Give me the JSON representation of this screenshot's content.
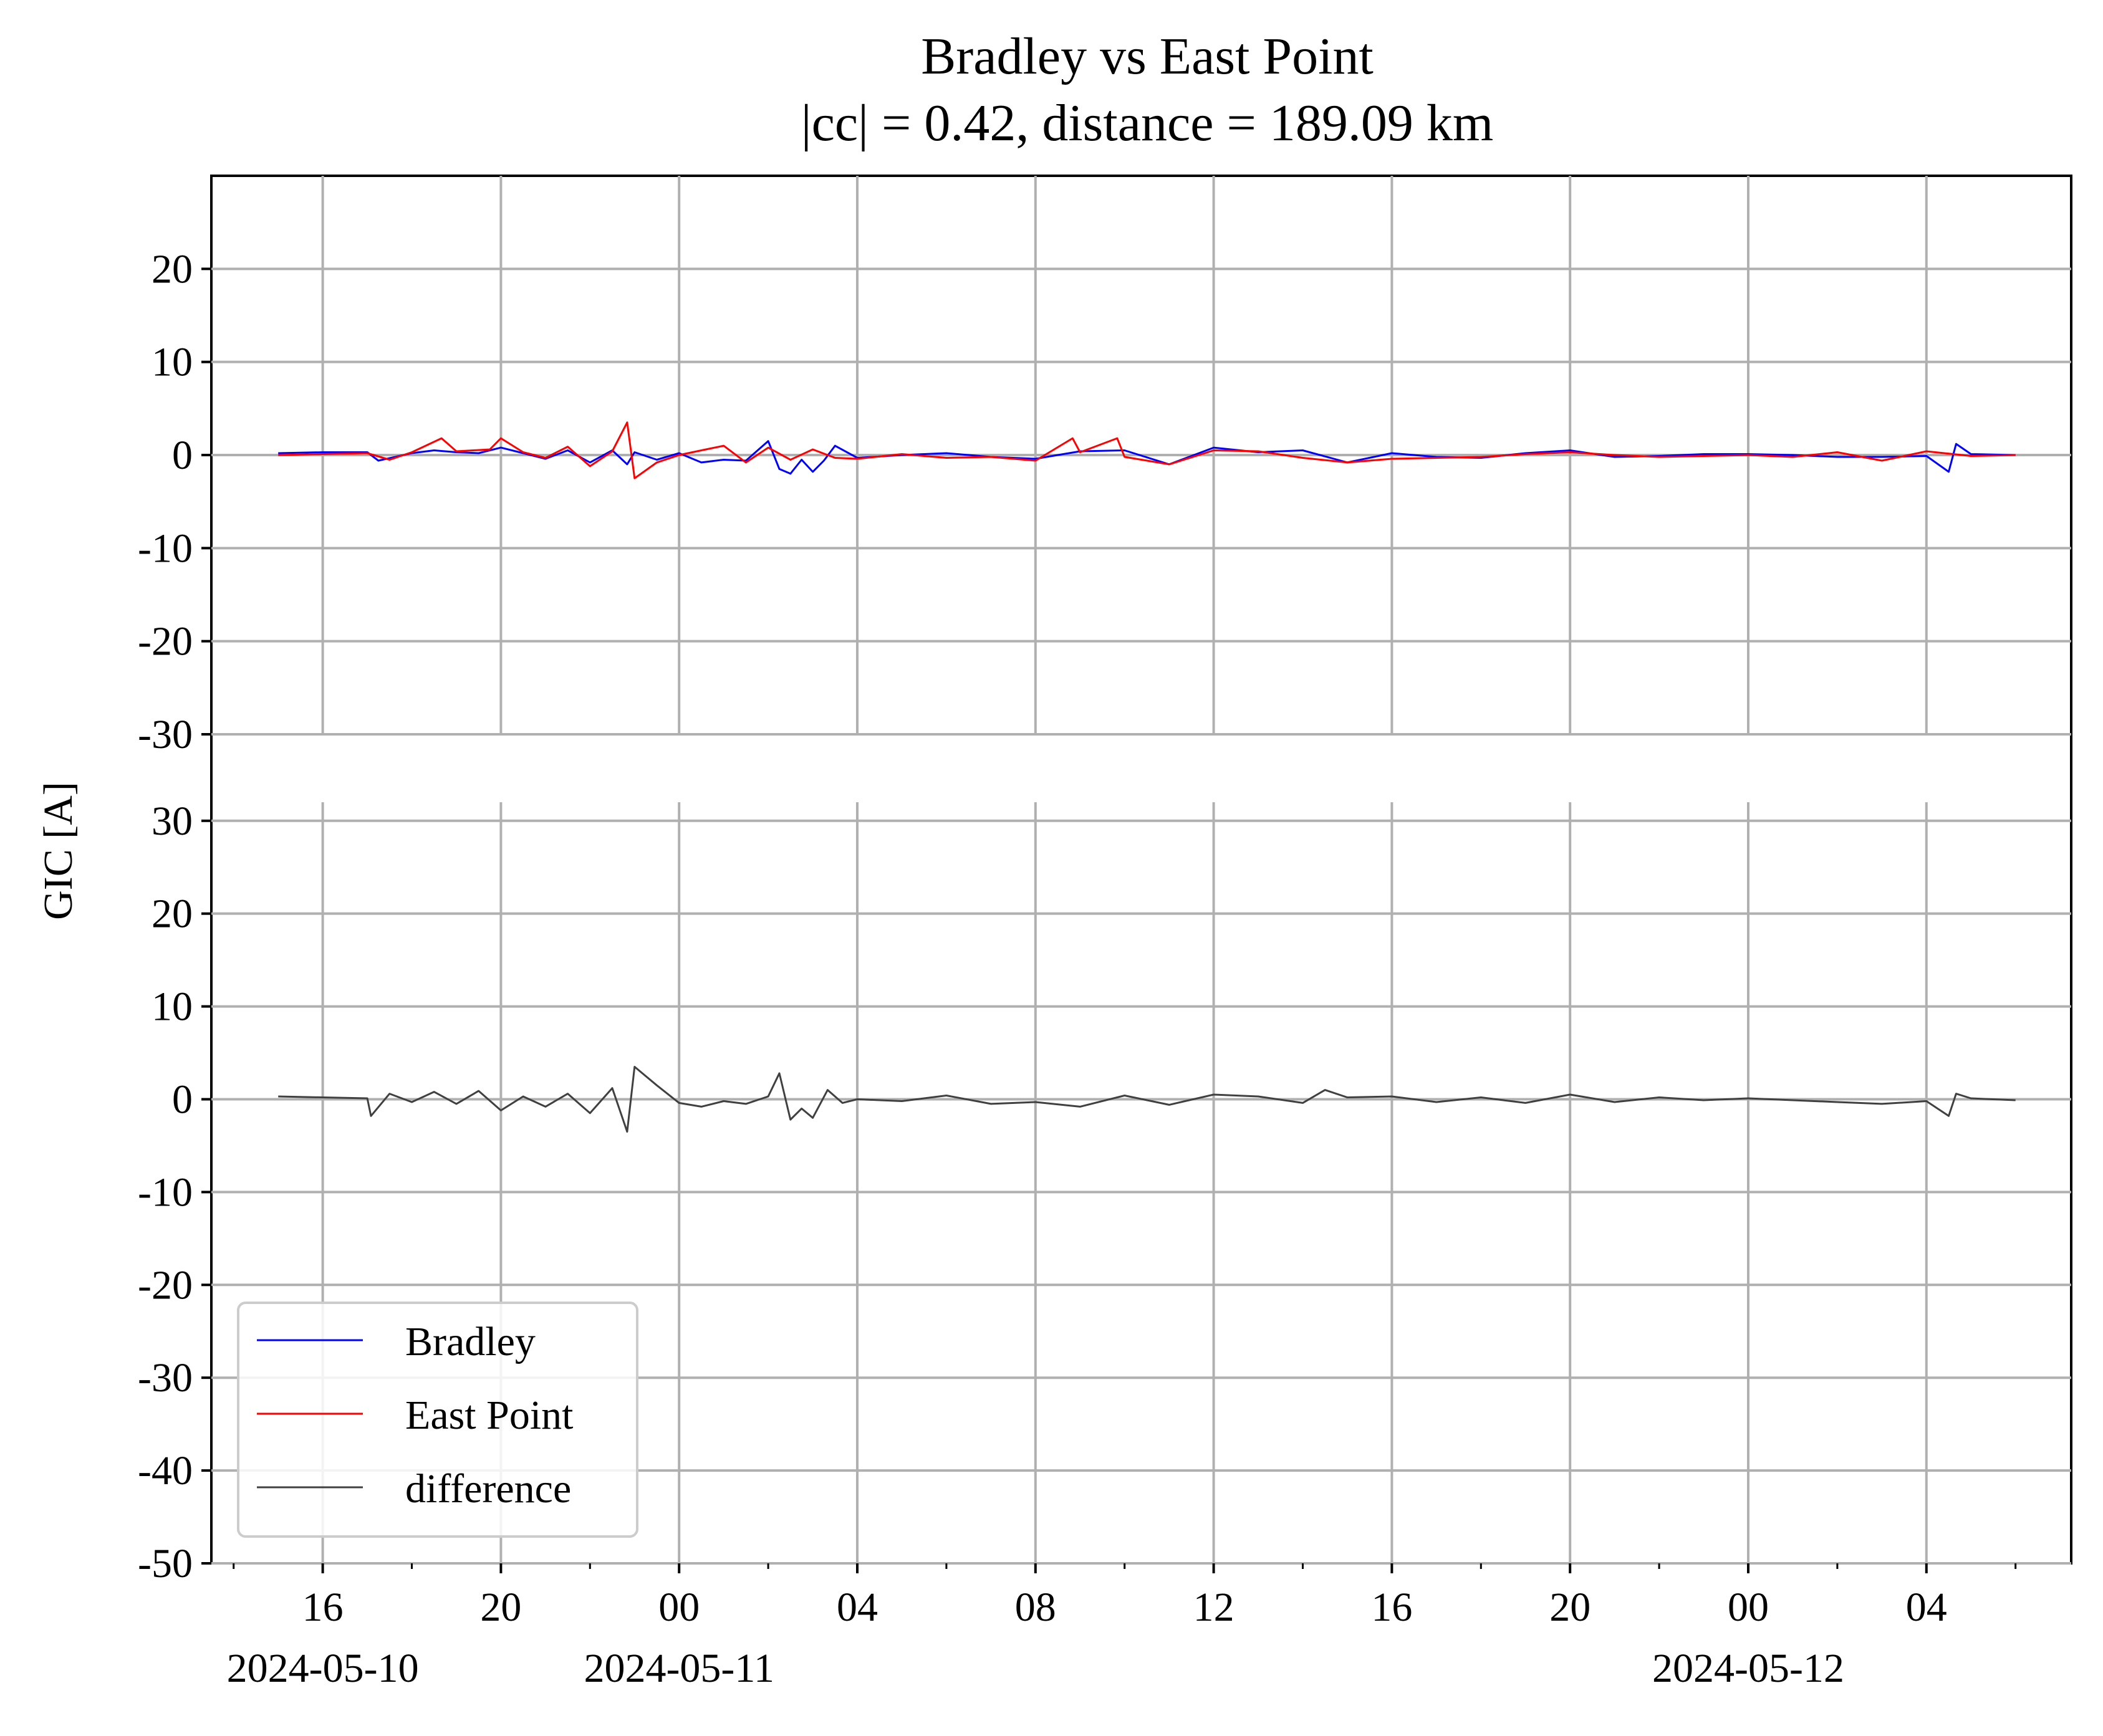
{
  "title": {
    "line1": "Bradley vs East Point",
    "line2": "|cc| = 0.42, distance = 189.09 km"
  },
  "ylabel": "GIC [A]",
  "colors": {
    "bradley": "#0000ff",
    "east_point": "#ff0000",
    "difference": "#404040",
    "grid": "#b0b0b0",
    "axis": "#000000"
  },
  "legend": {
    "placement": "lower-left",
    "entries": [
      "Bradley",
      "East Point",
      "difference"
    ]
  },
  "chart_data": [
    {
      "type": "line",
      "panel": "top",
      "title": "Bradley vs East Point\n|cc| = 0.42, distance = 189.09 km",
      "ylabel": "",
      "grid": true,
      "x_range": [
        "2024-05-10 13:30",
        "2024-05-12 07:15"
      ],
      "ylim": [
        -30,
        30
      ],
      "yticks": [
        -30,
        -20,
        -10,
        0,
        10,
        20
      ],
      "ytick_labels": [
        "-30",
        "-20",
        "-10",
        "0",
        "10",
        "20"
      ],
      "series": [
        {
          "name": "Bradley",
          "color": "#0000ff",
          "x": [
            "2024-05-10 15:00",
            "2024-05-10 16:00",
            "2024-05-10 17:00",
            "2024-05-10 17:15",
            "2024-05-10 18:00",
            "2024-05-10 18:30",
            "2024-05-10 19:00",
            "2024-05-10 19:30",
            "2024-05-10 20:00",
            "2024-05-10 20:30",
            "2024-05-10 21:00",
            "2024-05-10 21:30",
            "2024-05-10 22:00",
            "2024-05-10 22:30",
            "2024-05-10 22:50",
            "2024-05-10 23:00",
            "2024-05-10 23:30",
            "2024-05-11 00:00",
            "2024-05-11 00:30",
            "2024-05-11 01:00",
            "2024-05-11 01:30",
            "2024-05-11 02:00",
            "2024-05-11 02:15",
            "2024-05-11 02:30",
            "2024-05-11 02:45",
            "2024-05-11 03:00",
            "2024-05-11 03:15",
            "2024-05-11 03:30",
            "2024-05-11 04:00",
            "2024-05-11 05:00",
            "2024-05-11 06:00",
            "2024-05-11 07:00",
            "2024-05-11 08:00",
            "2024-05-11 09:00",
            "2024-05-11 10:00",
            "2024-05-11 11:00",
            "2024-05-11 12:00",
            "2024-05-11 13:00",
            "2024-05-11 14:00",
            "2024-05-11 15:00",
            "2024-05-11 16:00",
            "2024-05-11 17:00",
            "2024-05-11 18:00",
            "2024-05-11 19:00",
            "2024-05-11 20:00",
            "2024-05-11 21:00",
            "2024-05-11 22:00",
            "2024-05-11 23:00",
            "2024-05-12 00:00",
            "2024-05-12 01:00",
            "2024-05-12 02:00",
            "2024-05-12 03:00",
            "2024-05-12 04:00",
            "2024-05-12 04:30",
            "2024-05-12 04:40",
            "2024-05-12 05:00",
            "2024-05-12 06:00"
          ],
          "values": [
            0.2,
            0.3,
            0.3,
            -0.6,
            0.2,
            0.5,
            0.3,
            0.2,
            0.8,
            0.2,
            -0.4,
            0.5,
            -0.8,
            0.5,
            -1.0,
            0.3,
            -0.5,
            0.2,
            -0.8,
            -0.5,
            -0.6,
            1.5,
            -1.5,
            -2.0,
            -0.5,
            -1.8,
            -0.6,
            1.0,
            -0.3,
            0.0,
            0.2,
            -0.2,
            -0.4,
            0.4,
            0.5,
            -1.0,
            0.8,
            0.3,
            0.5,
            -0.8,
            0.2,
            -0.2,
            -0.3,
            0.2,
            0.5,
            -0.2,
            -0.1,
            0.1,
            0.1,
            0.0,
            -0.2,
            -0.2,
            -0.1,
            -1.8,
            1.2,
            0.1,
            0.0
          ]
        },
        {
          "name": "East Point",
          "color": "#ff0000",
          "x": [
            "2024-05-10 15:00",
            "2024-05-10 16:00",
            "2024-05-10 17:00",
            "2024-05-10 17:30",
            "2024-05-10 18:00",
            "2024-05-10 18:40",
            "2024-05-10 19:00",
            "2024-05-10 19:45",
            "2024-05-10 20:00",
            "2024-05-10 20:30",
            "2024-05-10 21:00",
            "2024-05-10 21:30",
            "2024-05-10 22:00",
            "2024-05-10 22:30",
            "2024-05-10 22:50",
            "2024-05-10 23:00",
            "2024-05-10 23:30",
            "2024-05-11 00:00",
            "2024-05-11 00:30",
            "2024-05-11 01:00",
            "2024-05-11 01:30",
            "2024-05-11 02:00",
            "2024-05-11 02:30",
            "2024-05-11 03:00",
            "2024-05-11 03:30",
            "2024-05-11 04:00",
            "2024-05-11 05:00",
            "2024-05-11 06:00",
            "2024-05-11 07:00",
            "2024-05-11 08:00",
            "2024-05-11 08:50",
            "2024-05-11 09:00",
            "2024-05-11 09:50",
            "2024-05-11 10:00",
            "2024-05-11 11:00",
            "2024-05-11 12:00",
            "2024-05-11 13:00",
            "2024-05-11 14:00",
            "2024-05-11 15:00",
            "2024-05-11 16:00",
            "2024-05-11 17:00",
            "2024-05-11 18:00",
            "2024-05-11 19:00",
            "2024-05-11 20:00",
            "2024-05-11 21:00",
            "2024-05-11 22:00",
            "2024-05-11 23:00",
            "2024-05-12 00:00",
            "2024-05-12 01:00",
            "2024-05-12 02:00",
            "2024-05-12 03:00",
            "2024-05-12 04:00",
            "2024-05-12 05:00",
            "2024-05-12 06:00"
          ],
          "values": [
            0.0,
            0.1,
            0.2,
            -0.5,
            0.3,
            1.8,
            0.4,
            0.6,
            1.8,
            0.3,
            -0.3,
            0.9,
            -1.2,
            0.4,
            3.5,
            -2.5,
            -0.8,
            0.0,
            0.5,
            1.0,
            -0.8,
            0.8,
            -0.5,
            0.6,
            -0.3,
            -0.4,
            0.1,
            -0.3,
            -0.2,
            -0.6,
            1.8,
            0.3,
            1.8,
            -0.2,
            -1.0,
            0.5,
            0.4,
            -0.3,
            -0.8,
            -0.4,
            -0.3,
            -0.2,
            0.1,
            0.3,
            0.0,
            -0.2,
            -0.1,
            0.0,
            -0.2,
            0.3,
            -0.6,
            0.4,
            -0.1,
            0.0
          ]
        }
      ]
    },
    {
      "type": "line",
      "panel": "bottom",
      "grid": true,
      "x_range": [
        "2024-05-10 13:30",
        "2024-05-12 07:15"
      ],
      "ylim": [
        -50,
        32
      ],
      "yticks": [
        -50,
        -40,
        -30,
        -20,
        -10,
        0,
        10,
        20,
        30
      ],
      "ytick_labels": [
        "-50",
        "-40",
        "-30",
        "-20",
        "-10",
        "0",
        "10",
        "20",
        "30"
      ],
      "xticks": [
        "2024-05-10 16:00",
        "2024-05-10 20:00",
        "2024-05-11 00:00",
        "2024-05-11 04:00",
        "2024-05-11 08:00",
        "2024-05-11 12:00",
        "2024-05-11 16:00",
        "2024-05-11 20:00",
        "2024-05-12 00:00",
        "2024-05-12 04:00"
      ],
      "xtick_labels": [
        "16",
        "20",
        "00",
        "04",
        "08",
        "12",
        "16",
        "20",
        "00",
        "04"
      ],
      "date_labels": [
        {
          "at": "2024-05-10 16:00",
          "text": "2024-05-10"
        },
        {
          "at": "2024-05-11 00:00",
          "text": "2024-05-11"
        },
        {
          "at": "2024-05-12 00:00",
          "text": "2024-05-12"
        }
      ],
      "series": [
        {
          "name": "difference",
          "color": "#404040",
          "x": [
            "2024-05-10 15:00",
            "2024-05-10 16:00",
            "2024-05-10 17:00",
            "2024-05-10 17:05",
            "2024-05-10 17:30",
            "2024-05-10 18:00",
            "2024-05-10 18:30",
            "2024-05-10 19:00",
            "2024-05-10 19:30",
            "2024-05-10 20:00",
            "2024-05-10 20:30",
            "2024-05-10 21:00",
            "2024-05-10 21:30",
            "2024-05-10 22:00",
            "2024-05-10 22:30",
            "2024-05-10 22:50",
            "2024-05-10 23:00",
            "2024-05-10 23:30",
            "2024-05-11 00:00",
            "2024-05-11 00:30",
            "2024-05-11 01:00",
            "2024-05-11 01:30",
            "2024-05-11 02:00",
            "2024-05-11 02:15",
            "2024-05-11 02:30",
            "2024-05-11 02:45",
            "2024-05-11 03:00",
            "2024-05-11 03:20",
            "2024-05-11 03:40",
            "2024-05-11 04:00",
            "2024-05-11 05:00",
            "2024-05-11 06:00",
            "2024-05-11 07:00",
            "2024-05-11 08:00",
            "2024-05-11 09:00",
            "2024-05-11 10:00",
            "2024-05-11 11:00",
            "2024-05-11 12:00",
            "2024-05-11 13:00",
            "2024-05-11 14:00",
            "2024-05-11 14:30",
            "2024-05-11 15:00",
            "2024-05-11 16:00",
            "2024-05-11 17:00",
            "2024-05-11 18:00",
            "2024-05-11 19:00",
            "2024-05-11 20:00",
            "2024-05-11 21:00",
            "2024-05-11 22:00",
            "2024-05-11 23:00",
            "2024-05-12 00:00",
            "2024-05-12 01:00",
            "2024-05-12 02:00",
            "2024-05-12 03:00",
            "2024-05-12 04:00",
            "2024-05-12 04:30",
            "2024-05-12 04:40",
            "2024-05-12 05:00",
            "2024-05-12 06:00"
          ],
          "values": [
            0.3,
            0.2,
            0.1,
            -1.8,
            0.6,
            -0.3,
            0.8,
            -0.5,
            0.9,
            -1.2,
            0.3,
            -0.8,
            0.6,
            -1.5,
            1.2,
            -3.5,
            3.5,
            1.5,
            -0.4,
            -0.8,
            -0.2,
            -0.5,
            0.3,
            2.8,
            -2.2,
            -1.0,
            -2.0,
            1.0,
            -0.4,
            0.0,
            -0.2,
            0.4,
            -0.5,
            -0.3,
            -0.8,
            0.4,
            -0.6,
            0.5,
            0.3,
            -0.4,
            1.0,
            0.2,
            0.3,
            -0.3,
            0.2,
            -0.4,
            0.5,
            -0.3,
            0.2,
            -0.1,
            0.1,
            -0.1,
            -0.3,
            -0.5,
            -0.2,
            -1.8,
            0.6,
            0.1,
            -0.1
          ]
        }
      ]
    }
  ]
}
